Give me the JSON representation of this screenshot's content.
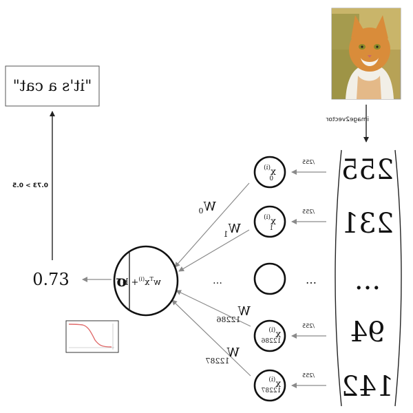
{
  "output_box": {
    "text": "\"it's a cat\""
  },
  "threshold_label": "0.73 > 0.5",
  "output_value": "0.73",
  "neuron": {
    "activation": "σ",
    "formula_w": "w",
    "formula_T": "T",
    "formula_x": "x",
    "formula_i": "(i)",
    "formula_b": "+ b"
  },
  "image_label": "image2vector",
  "scale_label": "/255",
  "ellipsis": "...",
  "mid_ellipsis": "…",
  "input_nodes": [
    {
      "base": "x",
      "sup": "(i)",
      "sub": "0"
    },
    {
      "base": "x",
      "sup": "(i)",
      "sub": "1"
    },
    {
      "base": "x",
      "sup": "(i)",
      "sub": "12286"
    },
    {
      "base": "x",
      "sup": "(i)",
      "sub": "12287"
    }
  ],
  "weights": [
    {
      "base": "W",
      "sub": "0"
    },
    {
      "base": "W",
      "sub": "1"
    },
    {
      "base": "W",
      "sub": "12286"
    },
    {
      "base": "W",
      "sub": "12287"
    }
  ],
  "vector_values": [
    "255",
    "231",
    "...",
    "94",
    "142"
  ],
  "colors": {
    "sigmoid_curve": "#e06a6a",
    "arrow": "#8a8a8a",
    "cat_fur": "#d98c3a"
  }
}
